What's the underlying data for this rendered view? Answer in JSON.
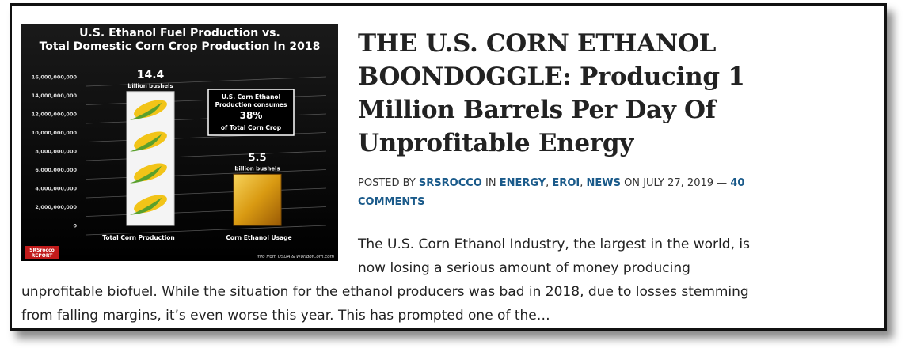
{
  "post": {
    "title": "THE U.S. CORN ETHANOL BOONDOGGLE: Producing 1 Million Barrels Per Day Of Unprofitable Energy",
    "meta": {
      "prefix": "POSTED BY",
      "author": "SRSROCCO",
      "in": "IN",
      "categories": [
        "ENERGY",
        "EROI",
        "NEWS"
      ],
      "category_separator": ", ",
      "on": "ON",
      "date": "JULY 27, 2019",
      "dash": "—",
      "comments": "40 COMMENTS"
    },
    "excerpt": "The U.S. Corn Ethanol Industry, the largest in the world, is now losing a serious amount of money producing unprofitable biofuel.  While the situation for the ethanol producers was bad in 2018, due to losses stemming from falling margins, it’s even worse this year.  This has prompted one of the…"
  },
  "chart_data": {
    "type": "bar",
    "title": "U.S. Ethanol Fuel Production vs. Total Domestic Corn Crop Production In 2018",
    "categories": [
      "Total Corn Production",
      "Corn Ethanol Usage"
    ],
    "values": [
      14400000000,
      5500000000
    ],
    "value_labels": [
      "14.4",
      "5.5"
    ],
    "value_unit": "billion bushels",
    "ylim": [
      0,
      16000000000
    ],
    "yticks": [
      0,
      {
        "value": 2000000000,
        "label": "2,000,000,000"
      },
      {
        "value": 4000000000,
        "label": "4,000,000,000"
      },
      {
        "value": 6000000000,
        "label": "6,000,000,000"
      },
      {
        "value": 8000000000,
        "label": "8,000,000,000"
      },
      {
        "value": 10000000000,
        "label": "10,000,000,000"
      },
      {
        "value": 12000000000,
        "label": "12,000,000,000"
      },
      {
        "value": 14000000000,
        "label": "14,000,000,000"
      },
      {
        "value": 16000000000,
        "label": "16,000,000,000"
      }
    ],
    "grid": true,
    "annotation": [
      "U.S. Corn Ethanol",
      "Production consumes",
      "38%",
      "of Total Corn Crop"
    ],
    "source": "info from USDA & WorldofCorn.com",
    "logo": [
      "SRSrocco",
      "REPORT"
    ]
  }
}
